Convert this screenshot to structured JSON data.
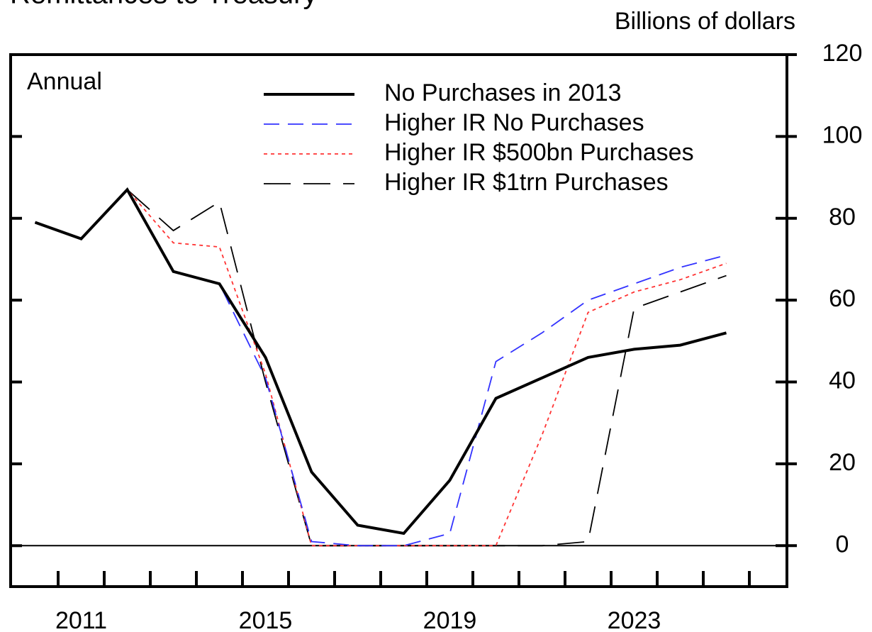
{
  "chart_data": {
    "type": "line",
    "title": "Remittances to Treasury",
    "y_axis_label": "Billions of dollars",
    "annotation": "Annual",
    "categories": [
      null,
      "2011",
      null,
      null,
      null,
      "2015",
      null,
      null,
      null,
      "2019",
      null,
      null,
      null,
      "2023",
      null,
      null
    ],
    "series": [
      {
        "name": "No Purchases in 2013",
        "color": "#000000",
        "style": "solid",
        "values": [
          79,
          75,
          87,
          67,
          64,
          46,
          18,
          5,
          3,
          16,
          36,
          41,
          46,
          48,
          49,
          52
        ]
      },
      {
        "name": "Higher IR No Purchases",
        "color": "#3333ff",
        "style": "dashed",
        "values": [
          79,
          75,
          87,
          67,
          64,
          41,
          1,
          0,
          0,
          3,
          45,
          52,
          60,
          64,
          68,
          71
        ]
      },
      {
        "name": "Higher IR $500bn Purchases",
        "color": "#ff3333",
        "style": "dotted",
        "values": [
          79,
          75,
          87,
          74,
          73,
          42,
          0,
          0,
          0,
          0,
          0,
          27,
          57,
          62,
          65,
          69
        ]
      },
      {
        "name": "Higher IR $1trn Purchases",
        "color": "#000000",
        "style": "longdash",
        "values": [
          79,
          75,
          87,
          77,
          84,
          40,
          0,
          0,
          0,
          0,
          0,
          0,
          1,
          58,
          62,
          66
        ]
      }
    ],
    "ylim": [
      -10,
      120
    ],
    "yticks": [
      0,
      20,
      40,
      60,
      80,
      100,
      120
    ],
    "legend": "top-right"
  }
}
